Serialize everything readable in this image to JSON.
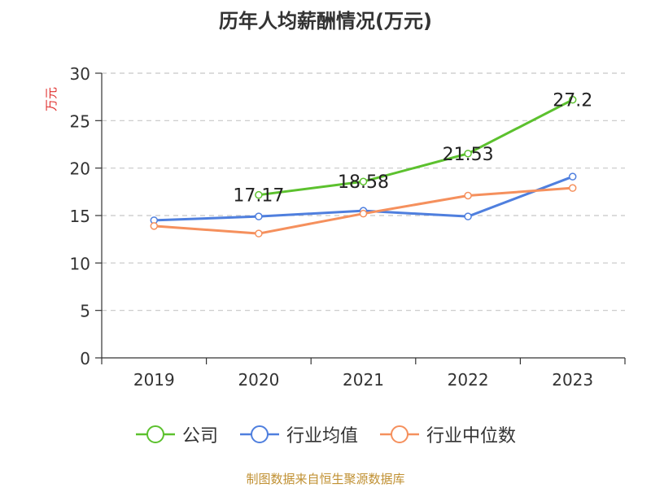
{
  "chart_data": {
    "type": "line",
    "title": "历年人均薪酬情况(万元)",
    "ylabel": "万元",
    "xlabel": "",
    "categories": [
      "2019",
      "2020",
      "2021",
      "2022",
      "2023"
    ],
    "ylim": [
      0,
      30
    ],
    "yticks": [
      0,
      5,
      10,
      15,
      20,
      25,
      30
    ],
    "grid": true,
    "legend_position": "bottom",
    "series": [
      {
        "name": "公司",
        "values": [
          null,
          17.17,
          18.58,
          21.53,
          27.2
        ],
        "color": "#5cc12e",
        "labels": [
          "",
          "17.17",
          "18.58",
          "21.53",
          "27.2"
        ]
      },
      {
        "name": "行业均值",
        "values": [
          14.5,
          14.9,
          15.5,
          14.9,
          19.1
        ],
        "color": "#4f7fde"
      },
      {
        "name": "行业中位数",
        "values": [
          13.9,
          13.1,
          15.2,
          17.1,
          17.9
        ],
        "color": "#f5905d"
      }
    ]
  },
  "source": "制图数据来自恒生聚源数据库"
}
